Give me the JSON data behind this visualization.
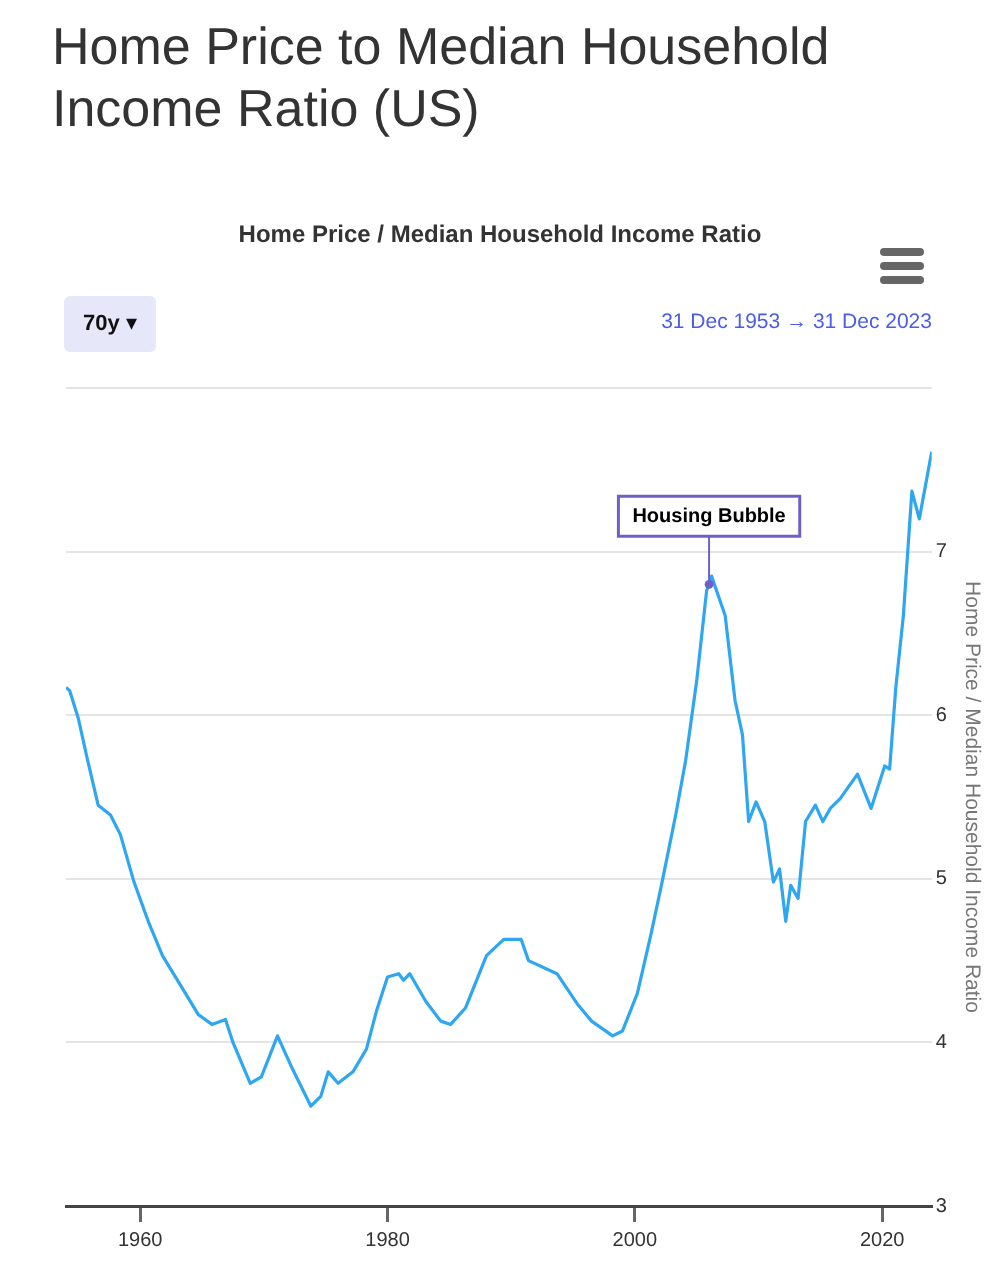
{
  "chart_data": {
    "type": "line",
    "title": "Home Price to Median Household Income Ratio (US)",
    "subtitle": "Home Price / Median Household Income Ratio",
    "ylabel": "Home Price / Median Household Income Ratio",
    "annotations": [
      {
        "text": "Housing Bubble",
        "x": 2006.0,
        "y": 6.8
      },
      "70y ▾",
      "31 Dec 1953 → 31 Dec 2023"
    ],
    "series": [
      {
        "color": "#2ea6f0",
        "x": [
          1954.0,
          1954.3,
          1955.0,
          1955.7,
          1956.6,
          1957.6,
          1958.4,
          1959.5,
          1960.7,
          1961.8,
          1963.5,
          1964.7,
          1965.8,
          1966.9,
          1967.5,
          1968.9,
          1969.8,
          1971.1,
          1972.3,
          1973.8,
          1974.6,
          1975.2,
          1976.0,
          1977.2,
          1978.3,
          1979.1,
          1980.0,
          1980.9,
          1981.3,
          1981.8,
          1983.1,
          1984.3,
          1985.1,
          1986.3,
          1988.0,
          1989.4,
          1990.8,
          1991.4,
          1993.7,
          1995.4,
          1996.5,
          1998.2,
          1999.0,
          2000.2,
          2001.3,
          2002.2,
          2003.3,
          2004.1,
          2005.0,
          2005.8,
          2006.2,
          2007.3,
          2008.1,
          2008.7,
          2009.2,
          2009.8,
          2010.5,
          2011.2,
          2011.7,
          2012.2,
          2012.6,
          2013.2,
          2013.8,
          2014.6,
          2015.2,
          2015.8,
          2016.6,
          2018.0,
          2019.1,
          2020.2,
          2020.6,
          2021.1,
          2021.7,
          2022.4,
          2023.0,
          2024.0
        ],
        "values": [
          6.17,
          6.15,
          5.98,
          5.74,
          5.45,
          5.39,
          5.27,
          4.98,
          4.73,
          4.53,
          4.32,
          4.17,
          4.11,
          4.14,
          4.0,
          3.75,
          3.79,
          4.04,
          3.84,
          3.61,
          3.67,
          3.82,
          3.75,
          3.82,
          3.96,
          4.19,
          4.4,
          4.42,
          4.38,
          4.42,
          4.25,
          4.13,
          4.11,
          4.21,
          4.53,
          4.63,
          4.63,
          4.5,
          4.42,
          4.23,
          4.13,
          4.04,
          4.07,
          4.3,
          4.66,
          4.98,
          5.39,
          5.72,
          6.21,
          6.76,
          6.85,
          6.61,
          6.09,
          5.88,
          5.35,
          5.47,
          5.35,
          4.98,
          5.06,
          4.74,
          4.96,
          4.88,
          5.35,
          5.45,
          5.35,
          5.43,
          5.49,
          5.64,
          5.43,
          5.69,
          5.67,
          6.17,
          6.6,
          7.37,
          7.2,
          7.61
        ]
      }
    ],
    "xlim": [
      1954,
      2024
    ],
    "xticks": [
      1960,
      1980,
      2000,
      2020
    ],
    "ylim": [
      3,
      8
    ],
    "yticks": [
      3,
      4,
      5,
      6,
      7,
      {
        "value": 8,
        "label": null
      }
    ],
    "grid": "y",
    "legend": false,
    "marker": "none",
    "line_style": "solid"
  }
}
